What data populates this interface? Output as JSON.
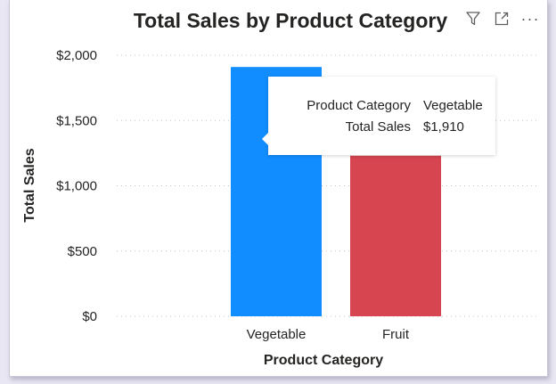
{
  "visual": {
    "title": "Total Sales by Product Category",
    "header_icons": [
      "filter-icon",
      "focus-mode-icon",
      "more-options-icon"
    ],
    "more_label": "···"
  },
  "tooltip": {
    "rows": [
      {
        "label": "Product Category",
        "value": "Vegetable"
      },
      {
        "label": "Total Sales",
        "value": "$1,910"
      }
    ]
  },
  "chart_data": {
    "type": "bar",
    "title": "Total Sales by Product Category",
    "categories": [
      "Vegetable",
      "Fruit"
    ],
    "values": [
      1910,
      1230
    ],
    "colors": [
      "#118dff",
      "#d64550"
    ],
    "xlabel": "Product Category",
    "ylabel": "Total Sales",
    "ylim": [
      0,
      2000
    ],
    "yticks": [
      0,
      500,
      1000,
      1500,
      2000
    ],
    "ytick_labels": [
      "$0",
      "$500",
      "$1,000",
      "$1,500",
      "$2,000"
    ],
    "grid": true,
    "legend": "none"
  }
}
